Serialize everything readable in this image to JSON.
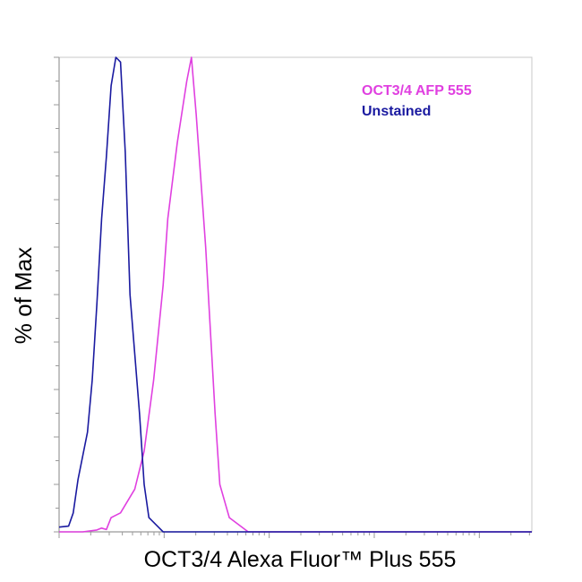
{
  "chart_data": {
    "type": "line",
    "title": "",
    "xlabel": "OCT3/4 Alexa Fluor™ Plus 555",
    "ylabel": "% of Max",
    "x_scale": "log",
    "xlim": [
      0,
      1
    ],
    "ylim": [
      0,
      100
    ],
    "grid": false,
    "legend_placement": "top-right",
    "series": [
      {
        "name": "OCT3/4 AFP 555",
        "color": "#e040e0",
        "x": [
          0.0,
          0.05,
          0.08,
          0.09,
          0.1,
          0.11,
          0.13,
          0.16,
          0.18,
          0.2,
          0.22,
          0.23,
          0.25,
          0.27,
          0.28,
          0.29,
          0.31,
          0.33,
          0.34,
          0.36,
          0.4,
          1.0
        ],
        "y": [
          0,
          0,
          0.4,
          0.8,
          0.5,
          3,
          4,
          9,
          17,
          32,
          52,
          66,
          82,
          95,
          100,
          88,
          60,
          25,
          10,
          3,
          0,
          0
        ]
      },
      {
        "name": "Unstained",
        "color": "#1a1aa0",
        "x": [
          0.0,
          0.02,
          0.03,
          0.04,
          0.06,
          0.07,
          0.08,
          0.09,
          0.1,
          0.11,
          0.12,
          0.13,
          0.14,
          0.15,
          0.17,
          0.18,
          0.19,
          0.21,
          0.22,
          0.24,
          1.0
        ],
        "y": [
          1,
          1.2,
          4,
          11,
          21,
          32,
          48,
          66,
          79,
          94,
          100,
          99,
          80,
          50,
          25,
          10,
          3,
          1,
          0,
          0,
          0
        ]
      }
    ]
  }
}
